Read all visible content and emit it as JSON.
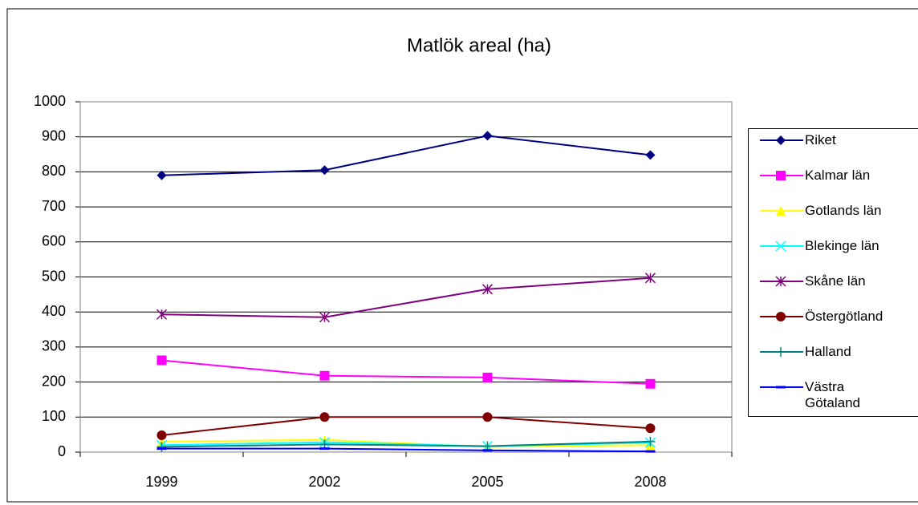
{
  "chart_data": {
    "type": "line",
    "title": "Matlök areal (ha)",
    "categories": [
      "1999",
      "2002",
      "2005",
      "2008"
    ],
    "ylim": [
      0,
      1000
    ],
    "yticks": [
      0,
      100,
      200,
      300,
      400,
      500,
      600,
      700,
      800,
      900,
      1000
    ],
    "grid": true,
    "series": [
      {
        "name": "Riket",
        "color": "#000080",
        "marker": "diamond",
        "values": [
          790,
          805,
          903,
          848
        ]
      },
      {
        "name": "Kalmar län",
        "color": "#ff00ff",
        "marker": "square",
        "values": [
          262,
          218,
          213,
          195
        ]
      },
      {
        "name": "Gotlands län",
        "color": "#ffff00",
        "marker": "triangle",
        "values": [
          30,
          35,
          15,
          20
        ]
      },
      {
        "name": "Blekinge län",
        "color": "#00ffff",
        "marker": "x",
        "values": [
          20,
          28,
          17,
          27
        ]
      },
      {
        "name": "Skåne län",
        "color": "#800080",
        "marker": "star",
        "values": [
          393,
          385,
          465,
          497
        ]
      },
      {
        "name": "Östergötland",
        "color": "#800000",
        "marker": "circle",
        "values": [
          48,
          100,
          100,
          68
        ]
      },
      {
        "name": "Halland",
        "color": "#008080",
        "marker": "plus",
        "values": [
          15,
          22,
          17,
          30
        ]
      },
      {
        "name": "Västra Götaland",
        "color": "#0000ff",
        "marker": "dash",
        "values": [
          10,
          10,
          5,
          2
        ]
      }
    ]
  }
}
